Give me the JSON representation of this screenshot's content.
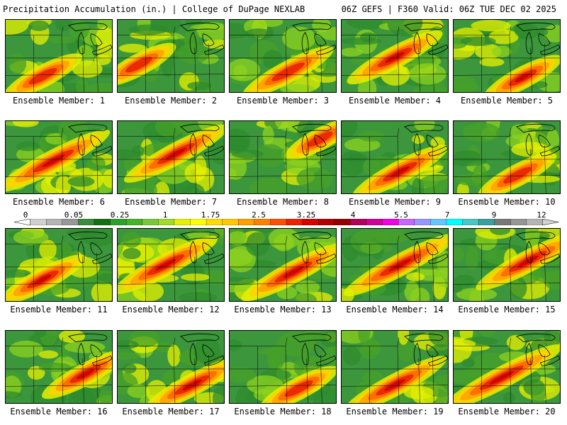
{
  "header": {
    "left": "Precipitation Accumulation (in.) | College of DuPage NEXLAB",
    "right": "06Z GEFS | F360 Valid: 06Z TUE DEC 02 2025"
  },
  "members": [
    {
      "label": "Ensemble Member: 1",
      "hot": [
        0.35,
        0.78,
        0.9
      ],
      "peak": 2
    },
    {
      "label": "Ensemble Member: 2",
      "hot": [
        0.2,
        0.62,
        0.85
      ],
      "peak": 2
    },
    {
      "label": "Ensemble Member: 3",
      "hot": [
        0.55,
        0.72,
        1.05
      ],
      "peak": 2
    },
    {
      "label": "Ensemble Member: 4",
      "hot": [
        0.5,
        0.52,
        1.1
      ],
      "peak": 3
    },
    {
      "label": "Ensemble Member: 5",
      "hot": [
        0.65,
        0.8,
        0.9
      ],
      "peak": 4
    },
    {
      "label": "Ensemble Member: 6",
      "hot": [
        0.45,
        0.55,
        1.3
      ],
      "peak": 4
    },
    {
      "label": "Ensemble Member: 7",
      "hot": [
        0.55,
        0.45,
        1.2
      ],
      "peak": 3
    },
    {
      "label": "Ensemble Member: 8",
      "hot": [
        0.85,
        0.25,
        0.8
      ],
      "peak": 2
    },
    {
      "label": "Ensemble Member: 9",
      "hot": [
        0.55,
        0.7,
        1.1
      ],
      "peak": 4
    },
    {
      "label": "Ensemble Member: 10",
      "hot": [
        0.6,
        0.75,
        0.9
      ],
      "peak": 2
    },
    {
      "label": "Ensemble Member: 11",
      "hot": [
        0.35,
        0.7,
        1.0
      ],
      "peak": 4
    },
    {
      "label": "Ensemble Member: 12",
      "hot": [
        0.45,
        0.5,
        1.2
      ],
      "peak": 3
    },
    {
      "label": "Ensemble Member: 13",
      "hot": [
        0.6,
        0.6,
        1.2
      ],
      "peak": 4
    },
    {
      "label": "Ensemble Member: 14",
      "hot": [
        0.55,
        0.5,
        1.3
      ],
      "peak": 3
    },
    {
      "label": "Ensemble Member: 15",
      "hot": [
        0.7,
        0.45,
        1.2
      ],
      "peak": 4
    },
    {
      "label": "Ensemble Member: 16",
      "hot": [
        0.75,
        0.6,
        1.0
      ],
      "peak": 3
    },
    {
      "label": "Ensemble Member: 17",
      "hot": [
        0.7,
        0.75,
        1.1
      ],
      "peak": 3
    },
    {
      "label": "Ensemble Member: 18",
      "hot": [
        0.65,
        0.8,
        0.9
      ],
      "peak": 2
    },
    {
      "label": "Ensemble Member: 19",
      "hot": [
        0.5,
        0.75,
        1.2
      ],
      "peak": 4
    },
    {
      "label": "Ensemble Member: 20",
      "hot": [
        0.45,
        0.65,
        1.4
      ],
      "peak": 5
    }
  ],
  "colorbar": {
    "labels": [
      "0",
      "0.05",
      "0.25",
      "1",
      "1.75",
      "2.5",
      "3.25",
      "4",
      "5.5",
      "7",
      "9",
      "12"
    ],
    "colors": [
      "#ffffff",
      "#d0d0d0",
      "#b4b4b4",
      "#989898",
      "#3c8c3c",
      "#147014",
      "#2ea02e",
      "#46b428",
      "#78c83c",
      "#a0dc28",
      "#e6f000",
      "#ffff00",
      "#ffdc00",
      "#ffc800",
      "#ffa000",
      "#ff8000",
      "#ff5000",
      "#f02000",
      "#d80000",
      "#b40000",
      "#960000",
      "#b4005a",
      "#d20096",
      "#f000e6",
      "#c864ff",
      "#9696ff",
      "#64c8ff",
      "#00ffff",
      "#46c8c8",
      "#3ca0a0",
      "#787878",
      "#969696",
      "#b4b4b4",
      "#d2d2d2"
    ]
  }
}
